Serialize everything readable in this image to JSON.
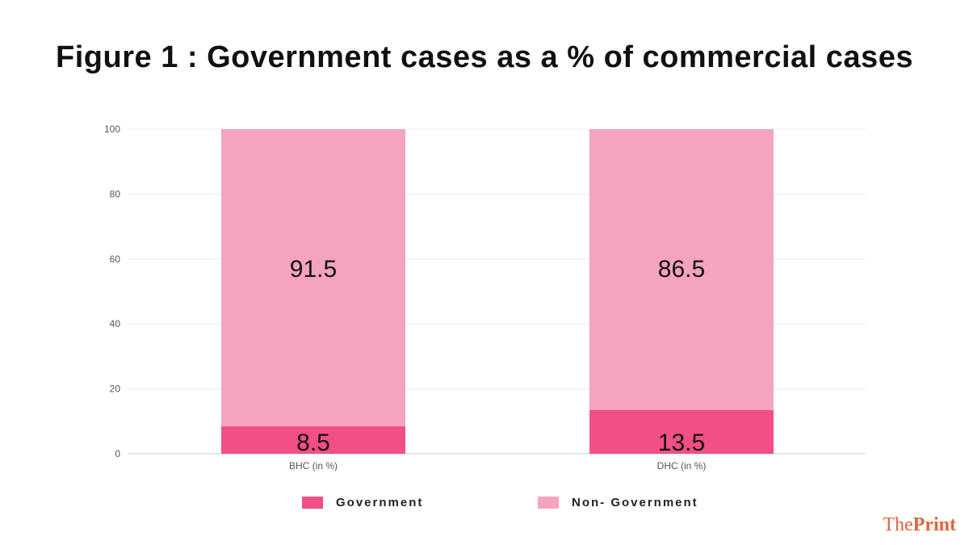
{
  "chart_data": {
    "type": "bar",
    "stacked": true,
    "title": "Figure 1 : Government cases as a % of commercial cases",
    "categories": [
      "BHC (in %)",
      "DHC (in %)"
    ],
    "series": [
      {
        "name": "Government",
        "values": [
          8.5,
          13.5
        ],
        "color": "#f24f86"
      },
      {
        "name": "Non- Government",
        "values": [
          91.5,
          86.5
        ],
        "color": "#f5a3bf"
      }
    ],
    "ylim": [
      0,
      100
    ],
    "yticks": [
      0,
      20,
      40,
      60,
      80,
      100
    ],
    "grid": true,
    "legend": "bottom"
  },
  "legend": {
    "government": "Government",
    "non_government": "Non- Government",
    "government_color": "#f24f86",
    "non_government_color": "#f5a3bf"
  },
  "logo": {
    "part1": "The",
    "part2": "Print"
  }
}
